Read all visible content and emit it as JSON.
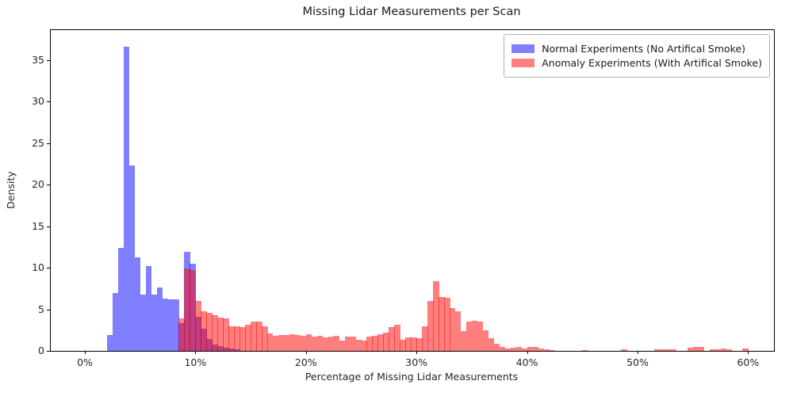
{
  "title": "Missing Lidar Measurements per Scan",
  "axes": {
    "x_label": "Percentage of Missing Lidar Measurements",
    "y_label": "Density",
    "x_tick_labels": [
      "0%",
      "10%",
      "20%",
      "30%",
      "40%",
      "50%",
      "60%"
    ],
    "x_tick_values": [
      0,
      10,
      20,
      30,
      40,
      50,
      60
    ],
    "y_tick_labels": [
      "0",
      "5",
      "10",
      "15",
      "20",
      "25",
      "30",
      "35"
    ],
    "y_tick_values": [
      0,
      5,
      10,
      15,
      20,
      25,
      30,
      35
    ]
  },
  "legend": {
    "items": [
      {
        "label": "Normal Experiments (No Artifical Smoke)",
        "color": "#8080ff"
      },
      {
        "label": "Anomaly Experiments (With Artifical Smoke)",
        "color": "#ff8080"
      }
    ]
  },
  "chart_data": {
    "type": "bar",
    "subtype": "overlapping_histogram",
    "title": "Missing Lidar Measurements per Scan",
    "xlabel": "Percentage of Missing Lidar Measurements",
    "ylabel": "Density",
    "xlim": [
      -3.1,
      62.3
    ],
    "ylim": [
      0,
      38.6
    ],
    "grid": false,
    "legend_position": "upper right",
    "bin_width_percent": 0.5,
    "series": [
      {
        "name": "Normal Experiments (No Artifical Smoke)",
        "fill": "rgba(0,0,255,0.5)",
        "bins_start_density": [
          [
            2.0,
            1.9
          ],
          [
            2.5,
            7.0
          ],
          [
            3.0,
            12.4
          ],
          [
            3.5,
            36.6
          ],
          [
            4.0,
            22.3
          ],
          [
            4.5,
            11.2
          ],
          [
            5.0,
            6.8
          ],
          [
            5.5,
            10.2
          ],
          [
            6.0,
            6.8
          ],
          [
            6.5,
            7.6
          ],
          [
            7.0,
            6.3
          ],
          [
            7.5,
            6.2
          ],
          [
            8.0,
            6.2
          ],
          [
            8.5,
            3.3
          ],
          [
            9.0,
            11.9
          ],
          [
            9.5,
            10.5
          ],
          [
            10.0,
            4.1
          ],
          [
            10.5,
            2.7
          ],
          [
            11.0,
            1.4
          ],
          [
            11.5,
            0.8
          ],
          [
            12.0,
            0.55
          ],
          [
            12.5,
            0.4
          ],
          [
            13.0,
            0.3
          ],
          [
            13.5,
            0.2
          ]
        ]
      },
      {
        "name": "Anomaly Experiments (With Artifical Smoke)",
        "fill": "rgba(255,0,0,0.5)",
        "bins_start_density": [
          [
            8.5,
            3.9
          ],
          [
            9.0,
            9.9
          ],
          [
            9.5,
            9.7
          ],
          [
            10.0,
            6.0
          ],
          [
            10.5,
            4.8
          ],
          [
            11.0,
            4.6
          ],
          [
            11.5,
            4.3
          ],
          [
            12.0,
            4.0
          ],
          [
            12.5,
            3.9
          ],
          [
            13.0,
            3.0
          ],
          [
            13.5,
            3.0
          ],
          [
            14.0,
            2.9
          ],
          [
            14.5,
            3.1
          ],
          [
            15.0,
            3.5
          ],
          [
            15.5,
            3.5
          ],
          [
            16.0,
            3.0
          ],
          [
            16.5,
            2.1
          ],
          [
            17.0,
            1.8
          ],
          [
            17.5,
            1.9
          ],
          [
            18.0,
            1.9
          ],
          [
            18.5,
            2.0
          ],
          [
            19.0,
            1.9
          ],
          [
            19.5,
            1.8
          ],
          [
            20.0,
            2.0
          ],
          [
            20.5,
            1.7
          ],
          [
            21.0,
            1.8
          ],
          [
            21.5,
            1.6
          ],
          [
            22.0,
            1.75
          ],
          [
            22.5,
            1.8
          ],
          [
            23.0,
            1.25
          ],
          [
            23.5,
            1.7
          ],
          [
            24.0,
            1.75
          ],
          [
            24.5,
            1.35
          ],
          [
            25.0,
            1.2
          ],
          [
            25.5,
            1.7
          ],
          [
            26.0,
            1.85
          ],
          [
            26.5,
            2.0
          ],
          [
            27.0,
            2.2
          ],
          [
            27.5,
            2.9
          ],
          [
            28.0,
            3.1
          ],
          [
            28.5,
            1.3
          ],
          [
            29.0,
            1.6
          ],
          [
            29.5,
            1.6
          ],
          [
            30.0,
            1.5
          ],
          [
            30.5,
            3.0
          ],
          [
            31.0,
            6.0
          ],
          [
            31.5,
            8.4
          ],
          [
            32.0,
            6.5
          ],
          [
            32.5,
            6.4
          ],
          [
            33.0,
            5.1
          ],
          [
            33.5,
            4.8
          ],
          [
            34.0,
            2.4
          ],
          [
            34.5,
            3.5
          ],
          [
            35.0,
            3.6
          ],
          [
            35.5,
            3.5
          ],
          [
            36.0,
            2.5
          ],
          [
            36.5,
            1.5
          ],
          [
            37.0,
            0.9
          ],
          [
            37.5,
            0.5
          ],
          [
            38.0,
            0.3
          ],
          [
            38.5,
            0.4
          ],
          [
            39.0,
            0.5
          ],
          [
            39.5,
            0.3
          ],
          [
            40.0,
            0.45
          ],
          [
            40.5,
            0.5
          ],
          [
            41.0,
            0.3
          ],
          [
            41.5,
            0.15
          ],
          [
            42.0,
            0.1
          ],
          [
            45.0,
            0.1
          ],
          [
            48.5,
            0.2
          ],
          [
            51.5,
            0.18
          ],
          [
            52.0,
            0.2
          ],
          [
            52.5,
            0.2
          ],
          [
            53.0,
            0.18
          ],
          [
            54.5,
            0.35
          ],
          [
            55.0,
            0.5
          ],
          [
            55.5,
            0.45
          ],
          [
            56.5,
            0.18
          ],
          [
            57.0,
            0.2
          ],
          [
            57.5,
            0.25
          ],
          [
            58.0,
            0.18
          ],
          [
            59.5,
            0.25
          ]
        ]
      }
    ]
  }
}
